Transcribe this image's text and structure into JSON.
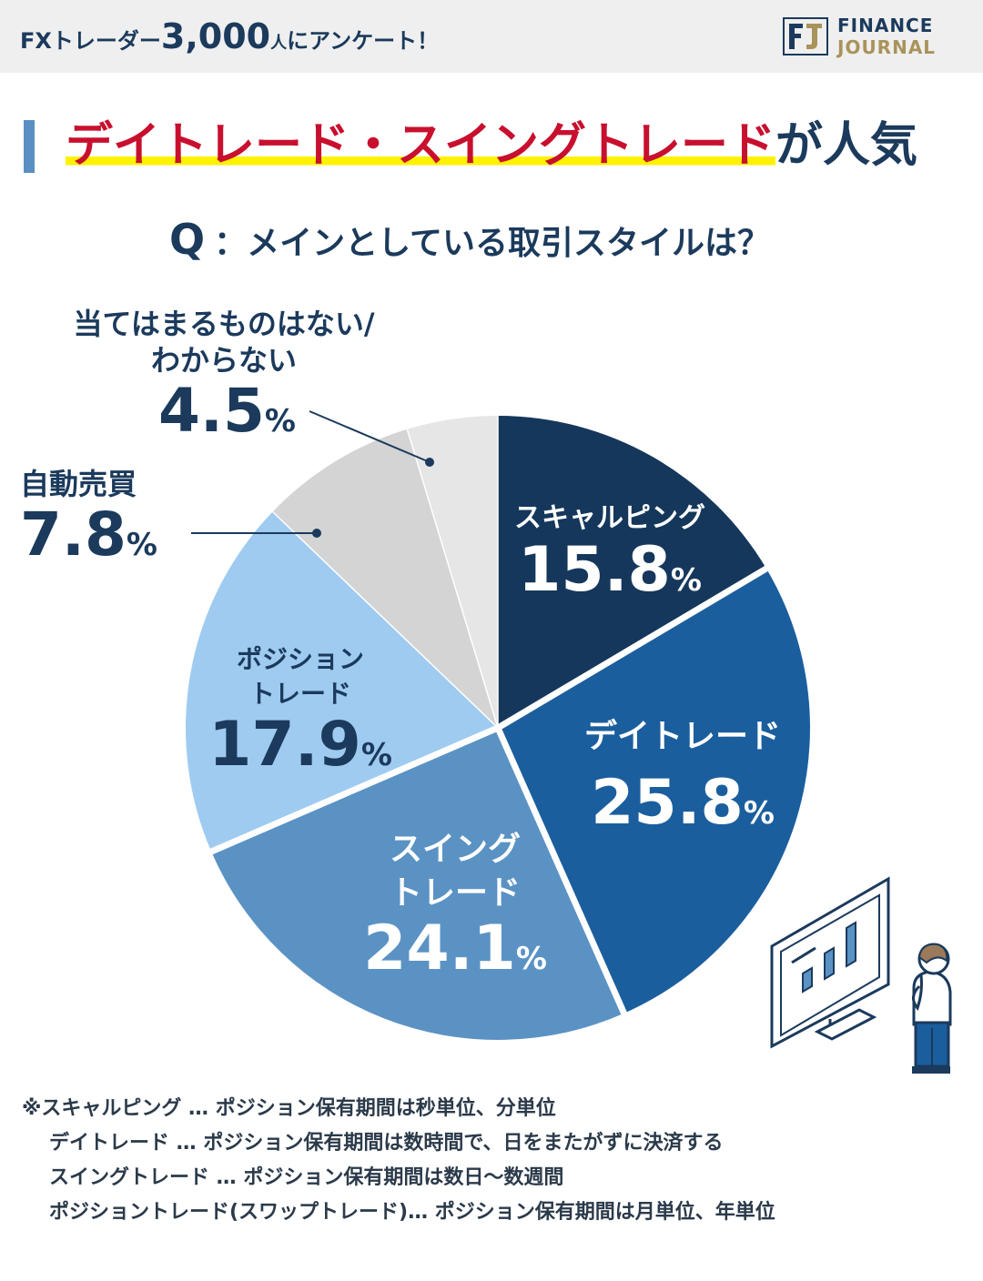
{
  "header": {
    "prefix": "FXトレーダー",
    "count": "3,000",
    "unit": "人",
    "suffix": "にアンケート！",
    "logo_line1": "FINANCE",
    "logo_line2": "JOURNAL"
  },
  "title": {
    "highlight": "デイトレード・スイングトレード",
    "rest": "が人気"
  },
  "question": {
    "mark": "Q",
    "text": "：メインとしている取引スタイルは？"
  },
  "colors": {
    "scalping": "#15375b",
    "daytrade": "#1b5e9e",
    "swing": "#5b92c4",
    "position": "#9fcbf1",
    "auto": "#d4d4d4",
    "none": "#e6e6e6",
    "highlight_text": "#c8102e",
    "highlight_marker": "#fff200"
  },
  "chart_data": {
    "type": "pie",
    "categories": [
      "スキャルピング",
      "デイトレード",
      "スイングトレード",
      "ポジショントレード",
      "自動売買",
      "当てはまるものはない/わからない"
    ],
    "values": [
      15.8,
      25.8,
      24.1,
      17.9,
      7.8,
      4.5
    ],
    "unit": "%",
    "labels": [
      {
        "name_lines": [
          "スキャルピング"
        ],
        "value": "15.8",
        "pct": "%"
      },
      {
        "name_lines": [
          "デイトレード"
        ],
        "value": "25.8",
        "pct": "%"
      },
      {
        "name_lines": [
          "スイング",
          "トレード"
        ],
        "value": "24.1",
        "pct": "%"
      },
      {
        "name_lines": [
          "ポジション",
          "トレード"
        ],
        "value": "17.9",
        "pct": "%"
      },
      {
        "name_lines": [
          "自動売買"
        ],
        "value": "7.8",
        "pct": "%"
      },
      {
        "name_lines": [
          "当てはまるものはない/",
          "わからない"
        ],
        "value": "4.5",
        "pct": "%"
      }
    ]
  },
  "notes": [
    "※スキャルピング … ポジション保有期間は秒単位、分単位",
    "デイトレード … ポジション保有期間は数時間で、日をまたがずに決済する",
    "スイングトレード … ポジション保有期間は数日〜数週間",
    "ポジショントレード(スワップトレード)… ポジション保有期間は月単位、年単位"
  ]
}
